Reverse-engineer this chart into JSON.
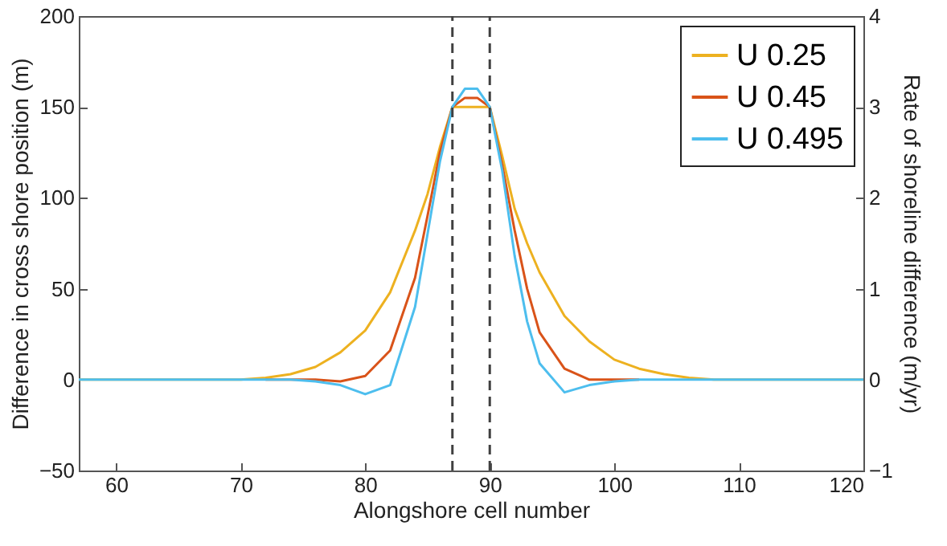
{
  "chart_data": {
    "type": "line",
    "xlabel": "Alongshore cell number",
    "ylabel": "Difference in cross shore position (m)",
    "y2label": "Rate of shoreline difference (m/yr)",
    "x": [
      57,
      70,
      72,
      74,
      76,
      78,
      80,
      82,
      84,
      85,
      86,
      87,
      88,
      89,
      90,
      91,
      92,
      93,
      94,
      96,
      98,
      100,
      102,
      104,
      106,
      108,
      120
    ],
    "series": [
      {
        "name": "U 0.25",
        "color": "#edb120",
        "values": [
          0,
          0,
          1,
          3,
          7,
          15,
          27,
          48,
          82,
          102,
          128,
          150,
          150,
          150,
          150,
          123,
          94,
          75,
          59,
          35,
          21,
          11,
          6,
          3,
          1,
          0,
          0
        ]
      },
      {
        "name": "U 0.45",
        "color": "#d95319",
        "values": [
          null,
          null,
          0,
          0,
          0,
          -1,
          2,
          16,
          56,
          90,
          125,
          150,
          155,
          155,
          150,
          118,
          82,
          50,
          26,
          6,
          0,
          0,
          0,
          null,
          null,
          null,
          null
        ]
      },
      {
        "name": "U 0.495",
        "color": "#4dbeee",
        "values": [
          0,
          0,
          0,
          0,
          -1,
          -3,
          -8,
          -3,
          40,
          80,
          120,
          150,
          160,
          160,
          150,
          115,
          68,
          32,
          9,
          -7,
          -3,
          -1,
          0,
          0,
          0,
          0,
          0
        ]
      }
    ],
    "xlim": [
      57,
      120
    ],
    "xticks": [
      60,
      70,
      80,
      90,
      100,
      110,
      120
    ],
    "ylim": [
      -50,
      200
    ],
    "yticks": [
      -50,
      0,
      50,
      100,
      150,
      200
    ],
    "y2lim": [
      -1,
      4
    ],
    "y2ticks": [
      -1,
      0,
      1,
      2,
      3,
      4
    ],
    "ref_lines": [
      {
        "axis": "x",
        "value": 87,
        "color": "#404040",
        "line_style": "dashed"
      },
      {
        "axis": "x",
        "value": 90,
        "color": "#404040",
        "line_style": "dashed"
      }
    ],
    "grid": false,
    "legend": "top right",
    "marker": "none",
    "line_style": "solid"
  }
}
